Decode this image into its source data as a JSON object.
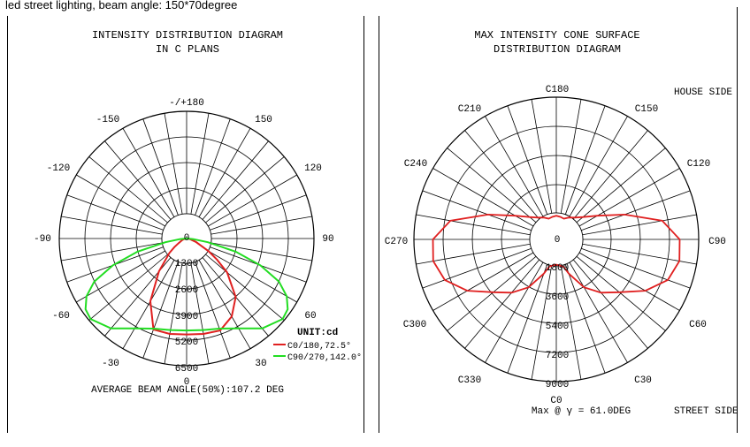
{
  "caption": "led street lighting, beam angle: 150*70degree",
  "colors": {
    "c0": "#e02020",
    "c90": "#22dd22",
    "cone": "#e02020",
    "grid": "#000000"
  },
  "charts": [
    {
      "title_line1": "INTENSITY DISTRIBUTION DIAGRAM",
      "title_line2": "IN C PLANS",
      "unit": "UNIT:cd",
      "legend": [
        {
          "label": "C0/180,72.5°"
        },
        {
          "label": "C90/270,142.0°"
        }
      ],
      "footer": "AVERAGE BEAM ANGLE(50%):107.2 DEG"
    },
    {
      "title_line1": "MAX INTENSITY CONE SURFACE",
      "title_line2": "DISTRIBUTION DIAGRAM",
      "house_side": "HOUSE SIDE",
      "street_side": "STREET SIDE",
      "footer": "Max @ γ = 61.0DEG"
    }
  ],
  "chart_data": [
    {
      "type": "polar",
      "angle_labels": [
        "-/+180",
        "150",
        "120",
        "90",
        "60",
        "30",
        "0",
        "-30",
        "-60",
        "-90",
        "-120",
        "-150"
      ],
      "radial_labels": [
        "0",
        "1300",
        "2600",
        "3900",
        "5200",
        "6500"
      ],
      "rmax": 6500,
      "grid": true,
      "series": [
        {
          "name": "C0/180,72.5°",
          "points": [
            [
              0,
              4900
            ],
            [
              10,
              4950
            ],
            [
              20,
              4950
            ],
            [
              30,
              3700
            ],
            [
              40,
              2200
            ],
            [
              50,
              1150
            ],
            [
              55,
              760
            ],
            [
              60,
              470
            ],
            [
              70,
              240
            ],
            [
              80,
              120
            ],
            [
              90,
              60
            ],
            [
              -10,
              4950
            ],
            [
              -20,
              5000
            ],
            [
              -30,
              4600
            ],
            [
              -40,
              3900
            ],
            [
              -50,
              2700
            ],
            [
              -55,
              1900
            ],
            [
              -60,
              1300
            ],
            [
              -70,
              500
            ],
            [
              -80,
              170
            ],
            [
              -90,
              60
            ]
          ]
        },
        {
          "name": "C90/270,142.0°",
          "points": [
            [
              0,
              4700
            ],
            [
              10,
              4750
            ],
            [
              20,
              4900
            ],
            [
              30,
              5300
            ],
            [
              40,
              6000
            ],
            [
              50,
              6400
            ],
            [
              55,
              6300
            ],
            [
              60,
              5900
            ],
            [
              65,
              5200
            ],
            [
              70,
              4000
            ],
            [
              75,
              2600
            ],
            [
              80,
              1100
            ],
            [
              85,
              350
            ],
            [
              90,
              60
            ],
            [
              -10,
              4750
            ],
            [
              -20,
              4900
            ],
            [
              -30,
              5300
            ],
            [
              -40,
              6000
            ],
            [
              -50,
              6400
            ],
            [
              -55,
              6300
            ],
            [
              -60,
              5900
            ],
            [
              -65,
              5200
            ],
            [
              -70,
              4000
            ],
            [
              -75,
              2600
            ],
            [
              -80,
              1100
            ],
            [
              -85,
              350
            ],
            [
              -90,
              60
            ]
          ]
        }
      ]
    },
    {
      "type": "polar",
      "angle_labels": [
        "C0",
        "C30",
        "C60",
        "C90",
        "C120",
        "C150",
        "C180",
        "C210",
        "C240",
        "C270",
        "C300",
        "C330"
      ],
      "radial_labels": [
        "0",
        "1800",
        "3600",
        "5400",
        "7200",
        "9000"
      ],
      "rmax": 9000,
      "grid": true,
      "series": [
        {
          "name": "",
          "points": [
            [
              0,
              1600
            ],
            [
              10,
              1700
            ],
            [
              15,
              1800
            ],
            [
              20,
              2300
            ],
            [
              30,
              3500
            ],
            [
              40,
              4400
            ],
            [
              50,
              5200
            ],
            [
              60,
              6500
            ],
            [
              70,
              7500
            ],
            [
              80,
              7900
            ],
            [
              90,
              7800
            ],
            [
              100,
              6800
            ],
            [
              110,
              4600
            ],
            [
              120,
              3000
            ],
            [
              130,
              2200
            ],
            [
              140,
              1800
            ],
            [
              150,
              1600
            ],
            [
              160,
              1400
            ],
            [
              170,
              1450
            ],
            [
              180,
              1500
            ],
            [
              190,
              1450
            ],
            [
              200,
              1400
            ],
            [
              210,
              1600
            ],
            [
              220,
              1800
            ],
            [
              230,
              2200
            ],
            [
              240,
              3000
            ],
            [
              250,
              4600
            ],
            [
              260,
              6800
            ],
            [
              270,
              7800
            ],
            [
              280,
              7900
            ],
            [
              290,
              7500
            ],
            [
              300,
              6500
            ],
            [
              310,
              5200
            ],
            [
              320,
              4400
            ],
            [
              330,
              3500
            ],
            [
              340,
              2300
            ],
            [
              345,
              1800
            ],
            [
              350,
              1700
            ]
          ]
        }
      ]
    }
  ]
}
